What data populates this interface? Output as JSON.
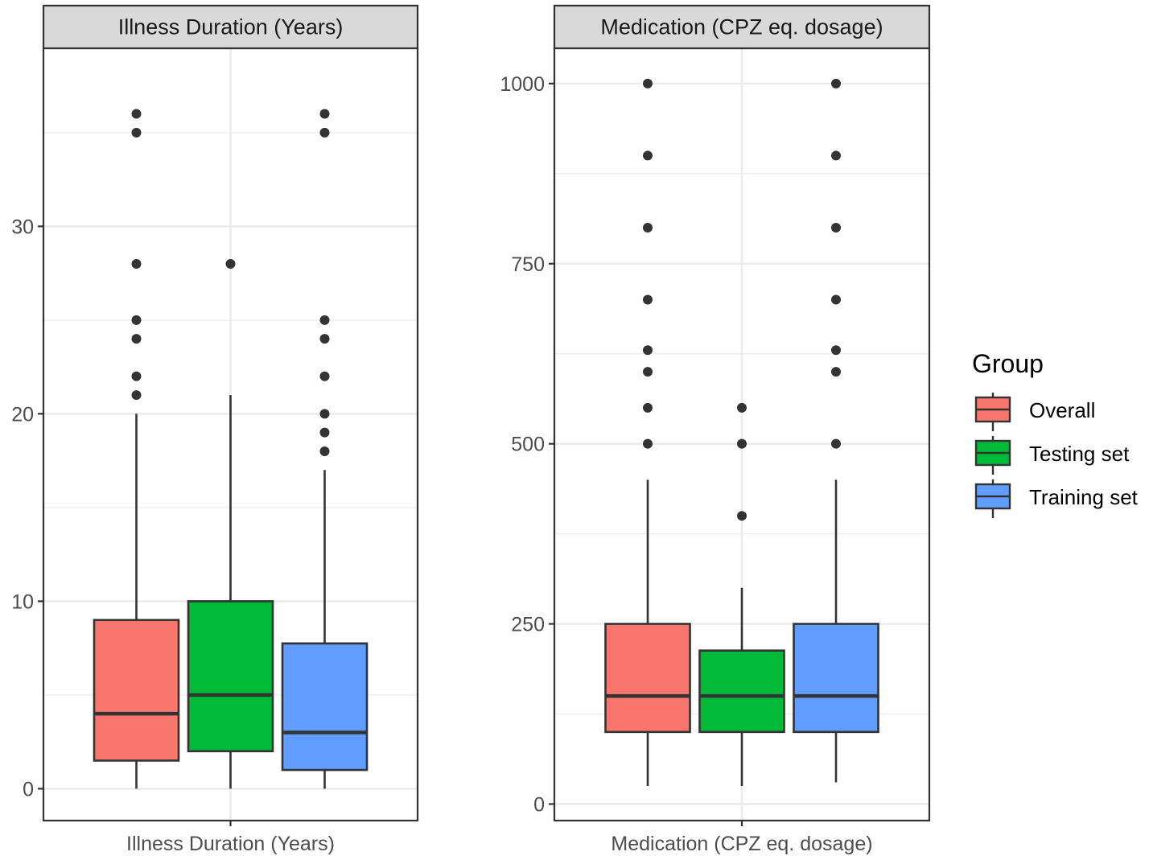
{
  "chart_data": {
    "type": "boxplot",
    "legend": {
      "title": "Group",
      "placement": "right",
      "groups": [
        {
          "name": "Overall",
          "color": "#F8766D"
        },
        {
          "name": "Testing set",
          "color": "#00BA38"
        },
        {
          "name": "Training set",
          "color": "#619CFF"
        }
      ]
    },
    "panels": [
      {
        "title": "Illness Duration (Years)",
        "xlabel": "Illness Duration (Years)",
        "ylim": [
          -1.7,
          39.5
        ],
        "yticks": [
          0,
          10,
          20,
          30
        ],
        "ytick_labels": [
          "0",
          "10",
          "20",
          "30"
        ],
        "boxes": [
          {
            "group": "Overall",
            "min": 0,
            "q1": 1.5,
            "median": 4,
            "q3": 9,
            "max": 20,
            "outliers": [
              21,
              22,
              24,
              25,
              28,
              35,
              36
            ]
          },
          {
            "group": "Testing set",
            "min": 0,
            "q1": 2,
            "median": 5,
            "q3": 10,
            "max": 21,
            "outliers": [
              28
            ]
          },
          {
            "group": "Training set",
            "min": 0,
            "q1": 1,
            "median": 3,
            "q3": 7.75,
            "max": 17,
            "outliers": [
              18,
              19,
              20,
              22,
              24,
              25,
              35,
              36
            ]
          }
        ]
      },
      {
        "title": "Medication (CPZ eq. dosage)",
        "xlabel": "Medication (CPZ eq. dosage)",
        "ylim": [
          -23,
          1049
        ],
        "yticks": [
          0,
          250,
          500,
          750,
          1000
        ],
        "ytick_labels": [
          "0",
          "250",
          "500",
          "750",
          "1000"
        ],
        "boxes": [
          {
            "group": "Overall",
            "min": 25,
            "q1": 100,
            "median": 150,
            "q3": 250,
            "max": 450,
            "outliers": [
              500,
              550,
              600,
              630,
              700,
              800,
              900,
              1000
            ]
          },
          {
            "group": "Testing set",
            "min": 25,
            "q1": 100,
            "median": 150,
            "q3": 213,
            "max": 300,
            "outliers": [
              400,
              500,
              550
            ]
          },
          {
            "group": "Training set",
            "min": 30,
            "q1": 100,
            "median": 150,
            "q3": 250,
            "max": 450,
            "outliers": [
              500,
              600,
              630,
              700,
              800,
              900,
              1000
            ]
          }
        ]
      }
    ]
  }
}
